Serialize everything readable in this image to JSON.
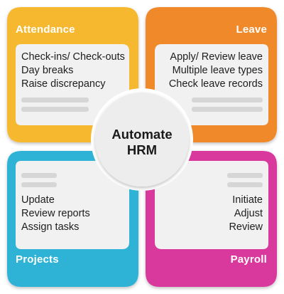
{
  "center": {
    "line1": "Automate",
    "line2": "HRM"
  },
  "quadrants": {
    "attendance": {
      "title": "Attendance",
      "color": "#F5B82E",
      "items": [
        "Check-ins/ Check-outs",
        "Day breaks",
        "Raise discrepancy"
      ]
    },
    "leave": {
      "title": "Leave",
      "color": "#F0892C",
      "items": [
        "Apply/ Review leave",
        "Multiple leave types",
        "Check leave records"
      ]
    },
    "projects": {
      "title": "Projects",
      "color": "#2FB3D6",
      "items": [
        "Update",
        "Review reports",
        "Assign tasks"
      ]
    },
    "payroll": {
      "title": "Payroll",
      "color": "#D9399C",
      "items": [
        "Initiate",
        "Adjust",
        "Review"
      ]
    }
  },
  "colors": {
    "card": "#F1F1F1",
    "placeholder": "#D6D6D6",
    "circle": "#EDEDED"
  }
}
